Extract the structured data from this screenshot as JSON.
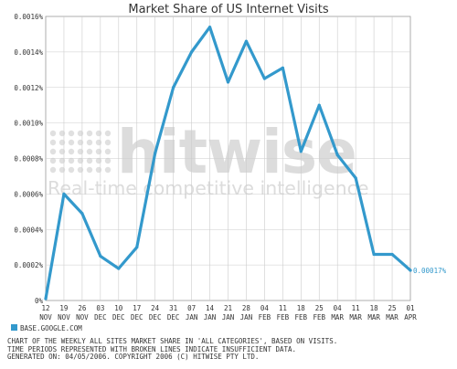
{
  "chart_data": {
    "type": "line",
    "title": "Market Share of US Internet Visits",
    "categories": [
      "12 NOV",
      "19 NOV",
      "26 NOV",
      "03 DEC",
      "10 DEC",
      "17 DEC",
      "24 DEC",
      "31 DEC",
      "07 JAN",
      "14 JAN",
      "21 JAN",
      "28 JAN",
      "04 FEB",
      "11 FEB",
      "18 FEB",
      "25 FEB",
      "04 MAR",
      "11 MAR",
      "18 MAR",
      "25 MAR",
      "01 APR"
    ],
    "yticks": [
      "0%",
      "0.0002%",
      "0.0004%",
      "0.0006%",
      "0.0008%",
      "0.0010%",
      "0.0012%",
      "0.0014%",
      "0.0016%"
    ],
    "ylim": [
      0,
      0.0016
    ],
    "yunit": "%",
    "grid": true,
    "series": [
      {
        "name": "BASE.GOOGLE.COM",
        "color": "#3399cc",
        "values": [
          1e-05,
          0.0006,
          0.00049,
          0.00025,
          0.00018,
          0.0003,
          0.00083,
          0.0012,
          0.0014,
          0.00154,
          0.00123,
          0.00146,
          0.00125,
          0.00131,
          0.00084,
          0.0011,
          0.00082,
          0.00069,
          0.00026,
          0.00026,
          0.00017
        ]
      }
    ],
    "end_label": "0.00017%"
  },
  "watermark": {
    "brand": "hitwise",
    "tagline": "Real-time competitive intelligence"
  },
  "legend": {
    "label": "BASE.GOOGLE.COM",
    "color": "#3399cc"
  },
  "footer": {
    "line1": "CHART OF THE WEEKLY ALL SITES MARKET SHARE IN 'ALL CATEGORIES', BASED ON VISITS.",
    "line2": "TIME PERIODS REPRESENTED WITH BROKEN LINES INDICATE INSUFFICIENT DATA.",
    "line3": "GENERATED ON: 04/05/2006. COPYRIGHT 2006 (C) HITWISE PTY LTD."
  }
}
